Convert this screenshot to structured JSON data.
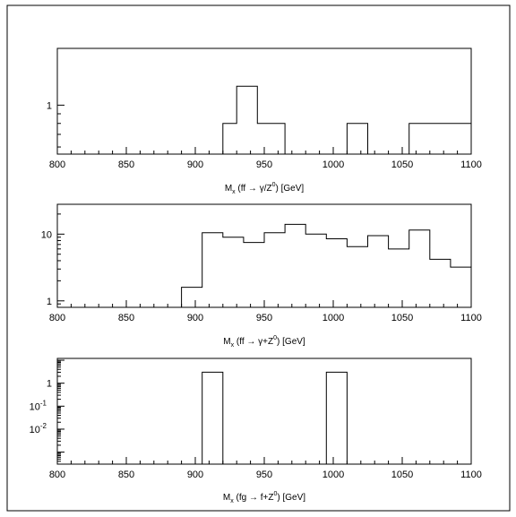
{
  "chart_data": [
    {
      "type": "histogram",
      "xlim": [
        800,
        1100
      ],
      "x_ticks": [
        "800",
        "850",
        "900",
        "950",
        "1000",
        "1050",
        "1100"
      ],
      "y_scale": "log",
      "ylim": [
        0.55,
        2.0
      ],
      "y_tick_labels": [
        {
          "value": 1,
          "label": "1"
        }
      ],
      "xlabel": {
        "prefix": "M",
        "sub": "x",
        "body": " (ff  →  γ/Z",
        "sup": "0",
        "tail": ") [GeV]"
      },
      "bins": [
        {
          "x0": 920,
          "x1": 930,
          "y": 0.8
        },
        {
          "x0": 930,
          "x1": 945,
          "y": 1.26
        },
        {
          "x0": 945,
          "x1": 965,
          "y": 0.8
        },
        {
          "x0": 1010,
          "x1": 1025,
          "y": 0.8
        },
        {
          "x0": 1055,
          "x1": 1100,
          "y": 0.8
        }
      ]
    },
    {
      "type": "histogram",
      "xlim": [
        800,
        1100
      ],
      "x_ticks": [
        "800",
        "850",
        "900",
        "950",
        "1000",
        "1050",
        "1100"
      ],
      "y_scale": "log",
      "ylim": [
        0.8,
        28
      ],
      "y_tick_labels": [
        {
          "value": 1,
          "label": "1"
        },
        {
          "value": 10,
          "label": "10"
        }
      ],
      "xlabel": {
        "prefix": "M",
        "sub": "x",
        "body": " (ff  →  γ+Z",
        "sup": "0",
        "tail": ") [GeV]"
      },
      "bins": [
        {
          "x0": 890,
          "x1": 905,
          "y": 1.6
        },
        {
          "x0": 905,
          "x1": 920,
          "y": 10.5
        },
        {
          "x0": 920,
          "x1": 935,
          "y": 9.0
        },
        {
          "x0": 935,
          "x1": 950,
          "y": 7.5
        },
        {
          "x0": 950,
          "x1": 965,
          "y": 10.5
        },
        {
          "x0": 965,
          "x1": 980,
          "y": 14.0
        },
        {
          "x0": 980,
          "x1": 995,
          "y": 10.0
        },
        {
          "x0": 995,
          "x1": 1010,
          "y": 8.5
        },
        {
          "x0": 1010,
          "x1": 1025,
          "y": 6.5
        },
        {
          "x0": 1025,
          "x1": 1040,
          "y": 9.5
        },
        {
          "x0": 1040,
          "x1": 1055,
          "y": 6.0
        },
        {
          "x0": 1055,
          "x1": 1070,
          "y": 11.5
        },
        {
          "x0": 1070,
          "x1": 1085,
          "y": 4.2
        },
        {
          "x0": 1085,
          "x1": 1100,
          "y": 3.2
        }
      ]
    },
    {
      "type": "histogram",
      "xlim": [
        800,
        1100
      ],
      "x_ticks": [
        "800",
        "850",
        "900",
        "950",
        "1000",
        "1050",
        "1100"
      ],
      "y_scale": "log",
      "ylim": [
        0.0003,
        12
      ],
      "y_tick_labels": [
        {
          "value": 1,
          "label": "1",
          "exp": ""
        },
        {
          "value": 0.1,
          "label": "10",
          "exp": "-1"
        },
        {
          "value": 0.01,
          "label": "10",
          "exp": "-2"
        }
      ],
      "xlabel": {
        "prefix": "M",
        "sub": "x",
        "body": " (fg  →  f+Z",
        "sup": "0",
        "tail": ") [GeV]"
      },
      "bins": [
        {
          "x0": 905,
          "x1": 920,
          "y": 3.0
        },
        {
          "x0": 995,
          "x1": 1010,
          "y": 3.0
        }
      ]
    }
  ]
}
